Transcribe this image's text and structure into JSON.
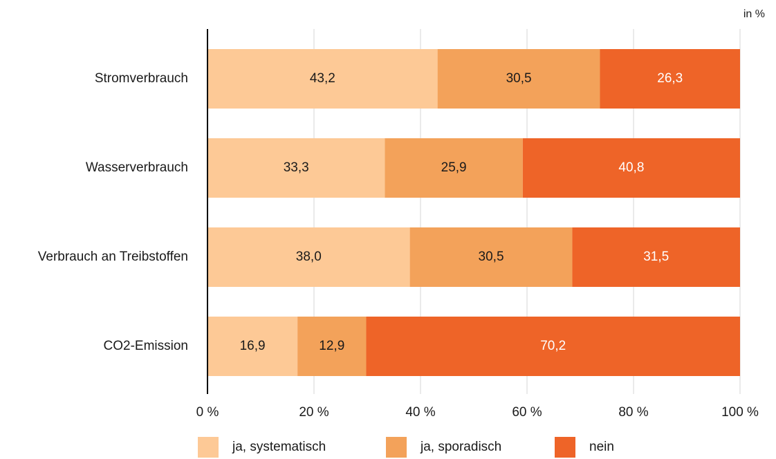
{
  "chart_data": {
    "type": "bar",
    "orientation": "horizontal",
    "stacked": true,
    "unit_label": "in %",
    "categories": [
      "Stromverbrauch",
      "Wasserverbrauch",
      "Verbrauch an Treibstoffen",
      "CO2-Emission"
    ],
    "series": [
      {
        "name": "ja, systematisch",
        "color": "#fdc996",
        "label_color": "#1a1a1a",
        "values": [
          43.2,
          33.3,
          38.0,
          16.9
        ],
        "labels": [
          "43,2",
          "33,3",
          "38,0",
          "16,9"
        ]
      },
      {
        "name": "ja, sporadisch",
        "color": "#f3a25a",
        "label_color": "#1a1a1a",
        "values": [
          30.5,
          25.9,
          30.5,
          12.9
        ],
        "labels": [
          "30,5",
          "25,9",
          "30,5",
          "12,9"
        ]
      },
      {
        "name": "nein",
        "color": "#ee6428",
        "label_color": "#ffffff",
        "values": [
          26.3,
          40.8,
          31.5,
          70.2
        ],
        "labels": [
          "26,3",
          "40,8",
          "31,5",
          "70,2"
        ]
      }
    ],
    "xlim": [
      0,
      100
    ],
    "xticks": [
      0,
      20,
      40,
      60,
      80,
      100
    ],
    "xtick_labels": [
      "0 %",
      "20 %",
      "40 %",
      "60 %",
      "80 %",
      "100 %"
    ],
    "grid": true,
    "legend_position": "bottom"
  }
}
